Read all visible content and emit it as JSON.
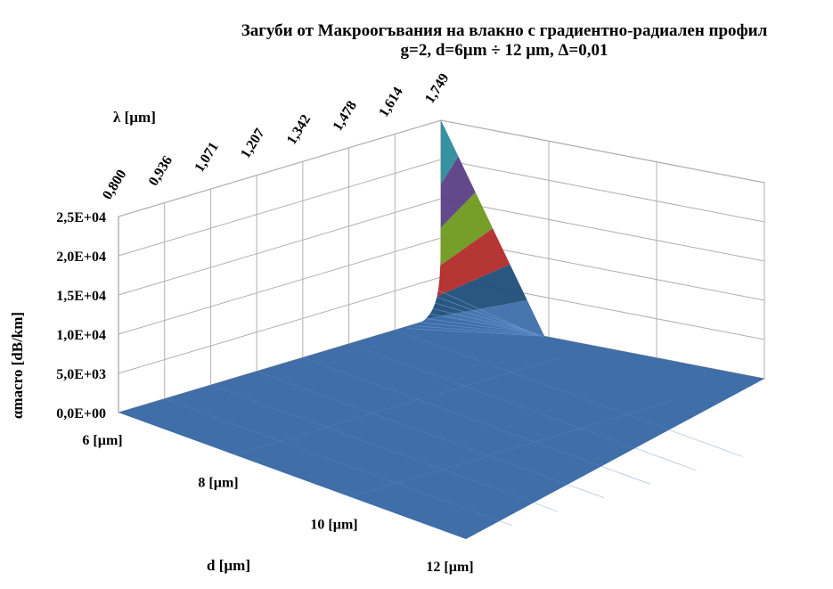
{
  "chart_data": {
    "type": "surface",
    "title": "Загуби от Макроогъвания на влакно  с градиентно-радиален профил",
    "subtitle": "g=2,   d=6µm  ÷ 12 µm,   Δ=0,01",
    "zlabel": "αmacro [dB/km]",
    "wavelength_label": "λ [µm]",
    "diameter_label": "d [µm]",
    "wavelength_ticks": [
      "0,800",
      "0,936",
      "1,071",
      "1,207",
      "1,342",
      "1,478",
      "1,614",
      "1,749"
    ],
    "diameter_ticks": [
      "6 [µm]",
      "8 [µm]",
      "10 [µm]",
      "12 [µm]"
    ],
    "z_ticks": [
      "0,0E+00",
      "5,0E+03",
      "1,0E+04",
      "1,5E+04",
      "2,0E+04",
      "2,5E+04"
    ],
    "zlim": [
      0,
      25000
    ],
    "wavelengths": [
      0.8,
      0.936,
      1.071,
      1.207,
      1.342,
      1.478,
      1.614,
      1.749
    ],
    "diameters": [
      6,
      8,
      10,
      12
    ],
    "series": [
      {
        "values": [
          0,
          0,
          0,
          0,
          0,
          0,
          2,
          25000
        ]
      },
      {
        "values": [
          0,
          0,
          0,
          0,
          0,
          0,
          0,
          0
        ]
      },
      {
        "values": [
          0,
          0,
          0,
          0,
          0,
          0,
          0,
          0
        ]
      },
      {
        "values": [
          0,
          0,
          0,
          0,
          0,
          0,
          0,
          0
        ]
      }
    ],
    "band_colors": [
      "#3e6eaa",
      "#1f4e79",
      "#b22a2a",
      "#6e9a1e",
      "#5a3f85",
      "#2c8c9a"
    ],
    "floor_color": "#3f6ea9",
    "grid": true
  }
}
